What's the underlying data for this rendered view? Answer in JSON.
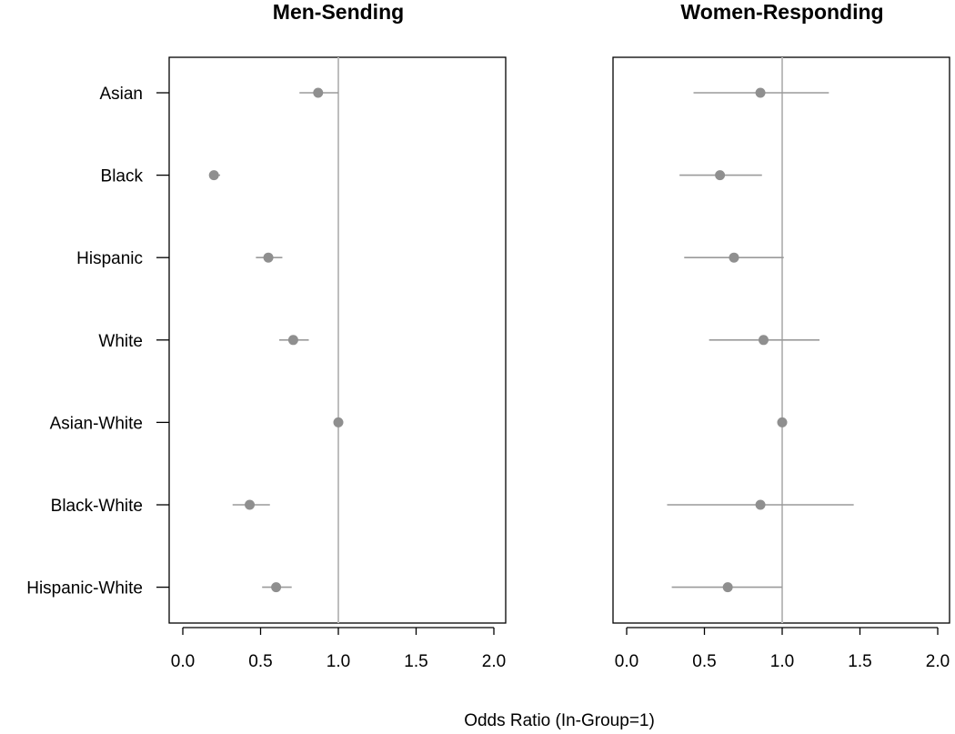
{
  "chart_data": [
    {
      "type": "scatter",
      "title": "Men-Sending",
      "categories": [
        "Asian",
        "Black",
        "Hispanic",
        "White",
        "Asian-White",
        "Black-White",
        "Hispanic-White"
      ],
      "estimates": [
        0.87,
        0.2,
        0.55,
        0.71,
        1.0,
        0.43,
        0.6
      ],
      "lower": [
        0.75,
        0.18,
        0.47,
        0.62,
        1.0,
        0.32,
        0.51
      ],
      "upper": [
        1.0,
        0.24,
        0.64,
        0.81,
        1.0,
        0.56,
        0.7
      ],
      "reference_line": 1.0,
      "xlim": [
        0,
        2
      ],
      "xticks": [
        "0.0",
        "0.5",
        "1.0",
        "1.5",
        "2.0"
      ],
      "grid": false
    },
    {
      "type": "scatter",
      "title": "Women-Responding",
      "categories": [
        "Asian",
        "Black",
        "Hispanic",
        "White",
        "Asian-White",
        "Black-White",
        "Hispanic-White"
      ],
      "estimates": [
        0.86,
        0.6,
        0.69,
        0.88,
        1.0,
        0.86,
        0.65
      ],
      "lower": [
        0.43,
        0.34,
        0.37,
        0.53,
        1.0,
        0.26,
        0.29
      ],
      "upper": [
        1.3,
        0.87,
        1.01,
        1.24,
        1.0,
        1.46,
        1.0
      ],
      "reference_line": 1.0,
      "xlim": [
        0,
        2
      ],
      "xticks": [
        "0.0",
        "0.5",
        "1.0",
        "1.5",
        "2.0"
      ],
      "grid": false
    }
  ],
  "xlabel": "Odds Ratio (In-Group=1)",
  "colors": {
    "point": "#8f8f8f",
    "errorbar": "#9a9a9a",
    "refline": "#bdbdbd",
    "axis": "#000000"
  }
}
